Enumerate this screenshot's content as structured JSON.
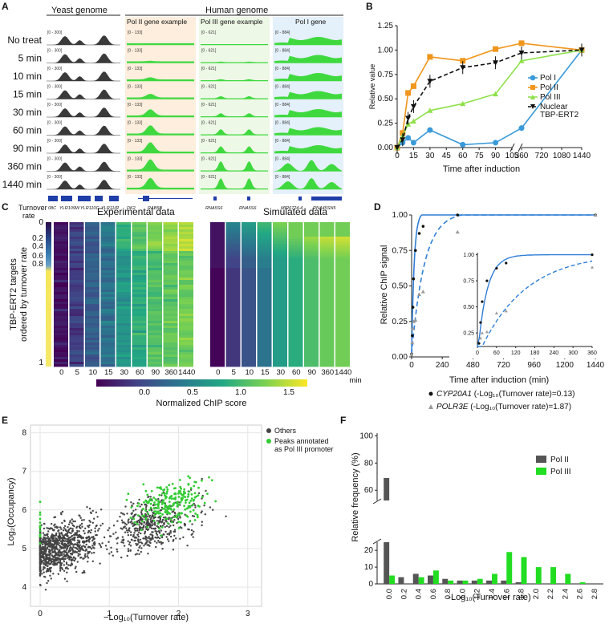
{
  "panelA": {
    "label": "A",
    "yeast_title": "Yeast genome",
    "human_title": "Human genome",
    "col_titles": [
      "Pol II gene example",
      "Pol III gene example",
      "Pol I gene"
    ],
    "rows": [
      "No treat",
      "5 min",
      "10 min",
      "15 min",
      "30 min",
      "60 min",
      "90 min",
      "360 min",
      "1440 min"
    ],
    "yeast_genes": [
      "08C",
      "YLR109W",
      "YLR110C",
      "YLR11(R"
    ],
    "pol2_genes": [
      "DK2",
      "RAB5B"
    ],
    "pol3_genes": [
      "RNA5S6",
      "RNA5S6"
    ],
    "pol1_genes": [
      "MIR6724-4",
      "RNA45SN5"
    ],
    "range_labels": [
      "[0 - 300]",
      "[0 - 133]",
      "[0 - 621]",
      "[0 - 884]"
    ]
  },
  "panelB": {
    "label": "B",
    "chart_data": {
      "type": "line",
      "ylabel": "Relative value",
      "xlabel": "Time after induction",
      "xticks_left": [
        "0",
        "15",
        "30",
        "45",
        "60",
        "75",
        "90",
        "105"
      ],
      "xticks_right": [
        "360",
        "720",
        "1080",
        "1440"
      ],
      "yticks": [
        "0.00",
        "0.25",
        "0.50",
        "0.75",
        "1.00",
        "1.25"
      ],
      "ylim": [
        0,
        1.25
      ],
      "series": [
        {
          "name": "Pol I",
          "color": "#3a9ad9",
          "x": [
            0,
            5,
            10,
            15,
            30,
            60,
            90,
            360,
            1440
          ],
          "y": [
            0,
            0.05,
            0.1,
            0.05,
            0.18,
            0.03,
            0.05,
            0.2,
            1.0
          ]
        },
        {
          "name": "Pol II",
          "color": "#f0961c",
          "x": [
            0,
            5,
            10,
            15,
            30,
            60,
            90,
            360,
            1440
          ],
          "y": [
            0,
            0.15,
            0.56,
            0.63,
            0.93,
            0.89,
            1.01,
            1.07,
            1.0
          ]
        },
        {
          "name": "Pol III",
          "color": "#8fe04a",
          "x": [
            0,
            5,
            10,
            15,
            30,
            60,
            90,
            360,
            1440
          ],
          "y": [
            0,
            0.12,
            0.24,
            0.27,
            0.38,
            0.45,
            0.55,
            0.89,
            1.0
          ]
        },
        {
          "name": "Nuclear TBP-ERT2",
          "color": "#111111",
          "x": [
            0,
            5,
            10,
            15,
            30,
            60,
            90,
            360,
            1440
          ],
          "y": [
            0,
            0.08,
            0.3,
            0.42,
            0.68,
            0.82,
            0.87,
            0.97,
            1.0
          ]
        }
      ],
      "legend": [
        "Pol I",
        "Pol II",
        "Pol III",
        "Nuclear",
        "TBP-ERT2"
      ]
    }
  },
  "panelC": {
    "label": "C",
    "turnover_title": "Turnover",
    "turnover_sub": "rate",
    "exp_title": "Experimental data",
    "sim_title": "Simulated data",
    "ylabel1": "TBP-ERT2 targets",
    "ylabel2": "ordered by turnover rate",
    "rate_ticks": [
      "0",
      "0.2",
      "0.4",
      "0.6",
      "0.8",
      "1"
    ],
    "time_ticks": [
      "0",
      "5",
      "10",
      "15",
      "30",
      "60",
      "90",
      "360",
      "1440"
    ],
    "unit": "min",
    "colorbar_ticks": [
      "0.0",
      "0.5",
      "1.0",
      "1.5"
    ],
    "colorbar_label": "Normalized ChIP score"
  },
  "panelD": {
    "label": "D",
    "chart_data": {
      "type": "line",
      "ylabel": "Relative ChIP signal",
      "xlabel": "Time after induction (min)",
      "xticks": [
        "0",
        "240",
        "480",
        "720",
        "960",
        "1200",
        "1440"
      ],
      "yticks": [
        "0.00",
        "0.25",
        "0.50",
        "0.75",
        "1.00"
      ],
      "inset_xticks": [
        "0",
        "60",
        "120",
        "180",
        "240",
        "300",
        "360"
      ],
      "inset_yticks": [
        "0.25",
        "0.50",
        "0.75",
        "1.00"
      ],
      "series": [
        {
          "name": "CYP20A1",
          "points_x": [
            0,
            5,
            10,
            15,
            30,
            60,
            90,
            360,
            1440
          ],
          "points_y": [
            0.02,
            0.15,
            0.35,
            0.55,
            0.75,
            0.87,
            0.92,
            1.0,
            1.0
          ]
        },
        {
          "name": "POLR3E",
          "points_x": [
            0,
            5,
            10,
            15,
            30,
            60,
            90,
            360,
            1440
          ],
          "points_y": [
            0.02,
            0.1,
            0.2,
            0.25,
            0.26,
            0.44,
            0.46,
            0.88,
            1.0
          ]
        }
      ],
      "legend1_gene": "CYP20A1",
      "legend1_rest": " (-Log₁₀(Turnover rate)=0.13)",
      "legend2_gene": "POLR3E",
      "legend2_rest": " (-Log₁₀(Turnover rate)=1.87)"
    }
  },
  "panelE": {
    "label": "E",
    "chart_data": {
      "type": "scatter",
      "ylabel": "Log₂(Occupancy)",
      "xlabel": "−Log₁₀(Turnover rate)",
      "xticks": [
        "0",
        "1",
        "2",
        "3"
      ],
      "yticks": [
        "4",
        "5",
        "6",
        "7",
        "8"
      ],
      "legend": [
        "Others",
        "Peaks annotated",
        "as Pol III promoter"
      ],
      "colors": {
        "others": "#444444",
        "pol3": "#33cc33"
      }
    }
  },
  "panelF": {
    "label": "F",
    "chart_data": {
      "type": "bar",
      "ylabel": "Relative frequency (%)",
      "xlabel": "-Log₁₀(Turnover rate)",
      "categories": [
        "0.0",
        "0.2",
        "0.4",
        "0.6",
        "0.8",
        "1.0",
        "1.2",
        "1.4",
        "1.6",
        "1.8",
        "2.0",
        "2.2",
        "2.4",
        "2.6",
        "2.8"
      ],
      "yticks_low": [
        "0",
        "10",
        "20"
      ],
      "yticks_high": [
        "60",
        "80",
        "100"
      ],
      "series": [
        {
          "name": "Pol II",
          "color": "#555555",
          "values": [
            69,
            4,
            6,
            5,
            3,
            2,
            2,
            2,
            2,
            1,
            0,
            0,
            0,
            0,
            0
          ]
        },
        {
          "name": "Pol III",
          "color": "#22dd22",
          "values": [
            5,
            0,
            4,
            8,
            2,
            2,
            3,
            6,
            19,
            16,
            10,
            10,
            6,
            1,
            0
          ]
        }
      ]
    }
  }
}
